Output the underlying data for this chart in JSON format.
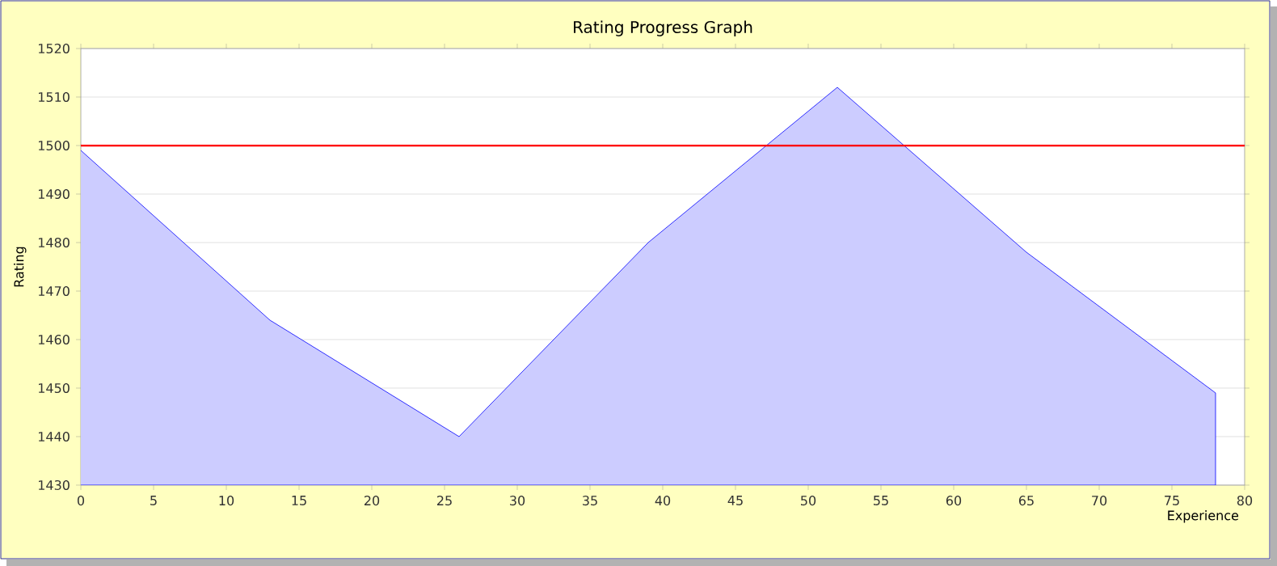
{
  "chart_data": {
    "type": "area",
    "title": "Rating Progress Graph",
    "xlabel": "Experience",
    "ylabel": "Rating",
    "x": [
      0,
      13,
      26,
      39,
      52,
      65,
      78
    ],
    "series": [
      {
        "color": "#ccccff",
        "values": [
          1499,
          1464,
          1440,
          1480,
          1512,
          1478,
          1449
        ]
      }
    ],
    "xlim": [
      0,
      80
    ],
    "xticks": [
      0,
      5,
      10,
      15,
      20,
      25,
      30,
      35,
      40,
      45,
      50,
      55,
      60,
      65,
      70,
      75,
      80
    ],
    "ylim": [
      1430,
      1520
    ],
    "yticks": [
      1430,
      1440,
      1450,
      1460,
      1470,
      1480,
      1490,
      1500,
      1510,
      1520
    ],
    "grid": "y",
    "ref_lines": [
      {
        "axis": "y",
        "value": 1500,
        "color": "#ff0000"
      }
    ]
  }
}
